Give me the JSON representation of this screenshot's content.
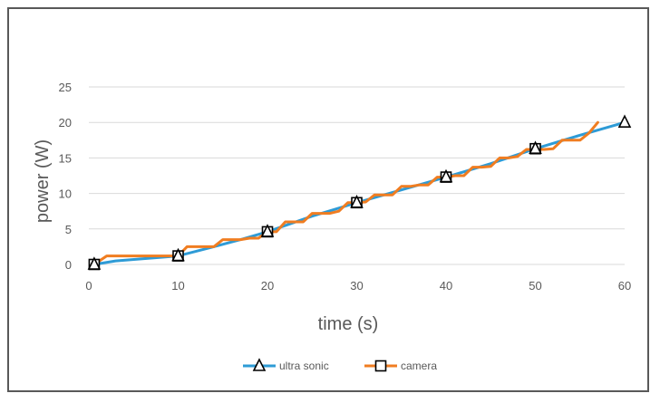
{
  "chart_data": {
    "type": "line",
    "title": "",
    "xlabel": "time (s)",
    "ylabel": "power (W)",
    "xlim": [
      0,
      60
    ],
    "ylim": [
      0,
      25
    ],
    "xticks": [
      0,
      10,
      20,
      30,
      40,
      50,
      60
    ],
    "yticks": [
      0,
      5,
      10,
      15,
      20,
      25
    ],
    "grid": "horizontal",
    "legend_position": "bottom",
    "series": [
      {
        "name": "ultra sonic",
        "color": "#2E9BD6",
        "marker": "triangle",
        "x": [
          0.6,
          3,
          6,
          10,
          14,
          17,
          20,
          25,
          30,
          35,
          40,
          45,
          50,
          55,
          60
        ],
        "y": [
          0,
          0.5,
          0.8,
          1.2,
          2.5,
          3.5,
          4.6,
          6.8,
          8.7,
          10.5,
          12.3,
          14.2,
          16.3,
          18.2,
          20
        ],
        "marker_x": [
          0.6,
          10,
          20,
          30,
          40,
          50,
          60
        ],
        "marker_y": [
          0,
          1.2,
          4.6,
          8.7,
          12.3,
          16.3,
          20
        ]
      },
      {
        "name": "camera",
        "color": "#F07D21",
        "marker": "square",
        "x": [
          0.6,
          2,
          4,
          6,
          8,
          10,
          11,
          13,
          14,
          15,
          16,
          17,
          18,
          19,
          20,
          21,
          22,
          23,
          24,
          25,
          26,
          27,
          28,
          29,
          30,
          31,
          32,
          33,
          34,
          35,
          36,
          37,
          38,
          39,
          40,
          41,
          42,
          43,
          44,
          45,
          46,
          47,
          48,
          49,
          50,
          51,
          52,
          53,
          54,
          55,
          56,
          57
        ],
        "y": [
          0,
          1.2,
          1.2,
          1.2,
          1.2,
          1.2,
          2.5,
          2.5,
          2.5,
          3.5,
          3.5,
          3.5,
          3.7,
          3.7,
          4.6,
          4.6,
          6.0,
          6.0,
          6.0,
          7.2,
          7.2,
          7.2,
          7.5,
          8.7,
          8.7,
          8.8,
          9.8,
          9.8,
          9.8,
          11,
          11,
          11.2,
          11.2,
          12.3,
          12.3,
          12.5,
          12.5,
          13.7,
          13.7,
          13.8,
          15,
          15,
          15.2,
          16.2,
          16.2,
          16.2,
          16.3,
          17.5,
          17.5,
          17.5,
          18.5,
          20
        ]
      }
    ]
  }
}
